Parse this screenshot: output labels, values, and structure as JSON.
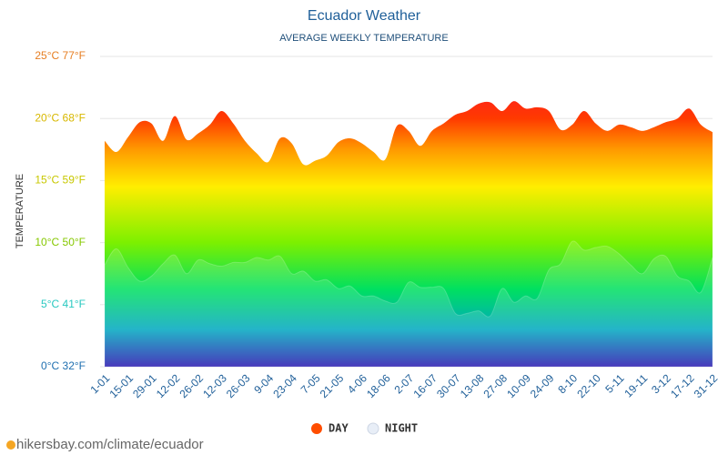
{
  "chart_data": {
    "type": "area",
    "title": "Ecuador Weather",
    "subtitle": "AVERAGE WEEKLY TEMPERATURE",
    "y_label": "TEMPERATURE",
    "source": "hikersbay.com/climate/ecuador",
    "categories": [
      "1-01",
      null,
      "15-01",
      null,
      "29-01",
      null,
      "12-02",
      null,
      "26-02",
      null,
      "12-03",
      null,
      "26-03",
      null,
      "9-04",
      null,
      "23-04",
      null,
      "7-05",
      null,
      "21-05",
      null,
      "4-06",
      null,
      "18-06",
      null,
      "2-07",
      null,
      "16-07",
      null,
      "30-07",
      null,
      "13-08",
      null,
      "27-08",
      null,
      "10-09",
      null,
      "24-09",
      null,
      "8-10",
      null,
      "22-10",
      null,
      "5-11",
      null,
      "19-11",
      null,
      "3-12",
      null,
      "17-12",
      null,
      "31-12"
    ],
    "series": [
      {
        "name": "DAY",
        "color": "#ff4d00",
        "values": [
          18.2,
          17.3,
          18.5,
          19.7,
          19.6,
          18.2,
          20.2,
          18.3,
          18.8,
          19.5,
          20.6,
          19.6,
          18.2,
          17.2,
          16.5,
          18.4,
          18.0,
          16.3,
          16.6,
          17.0,
          18.1,
          18.4,
          18.0,
          17.3,
          16.7,
          19.4,
          19.0,
          17.8,
          19.0,
          19.6,
          20.3,
          20.6,
          21.2,
          21.3,
          20.6,
          21.4,
          20.8,
          20.9,
          20.6,
          19.1,
          19.5,
          20.6,
          19.6,
          19.0,
          19.5,
          19.3,
          19.0,
          19.3,
          19.7,
          20.0,
          20.8,
          19.5,
          18.9
        ]
      },
      {
        "name": "NIGHT",
        "color": "#e8eef7",
        "values": [
          8.2,
          9.5,
          8.0,
          6.9,
          7.3,
          8.3,
          9.0,
          7.5,
          8.6,
          8.3,
          8.1,
          8.4,
          8.4,
          8.8,
          8.6,
          8.9,
          7.5,
          7.7,
          6.9,
          7.0,
          6.3,
          6.5,
          5.7,
          5.7,
          5.3,
          5.2,
          6.8,
          6.4,
          6.4,
          6.3,
          4.3,
          4.3,
          4.5,
          4.1,
          6.3,
          5.2,
          5.7,
          5.5,
          7.8,
          8.3,
          10.1,
          9.4,
          9.6,
          9.7,
          9.1,
          8.2,
          7.5,
          8.7,
          8.9,
          7.3,
          6.9,
          6.0,
          8.8
        ]
      }
    ],
    "ylim": [
      0,
      25
    ],
    "yticks": [
      {
        "value": 0,
        "label": "0°C 32°F"
      },
      {
        "value": 5,
        "label": "5°C 41°F"
      },
      {
        "value": 10,
        "label": "10°C 50°F"
      },
      {
        "value": 15,
        "label": "15°C 59°F"
      },
      {
        "value": 20,
        "label": "20°C 68°F"
      },
      {
        "value": 25,
        "label": "25°C 77°F"
      }
    ],
    "grid": true
  }
}
